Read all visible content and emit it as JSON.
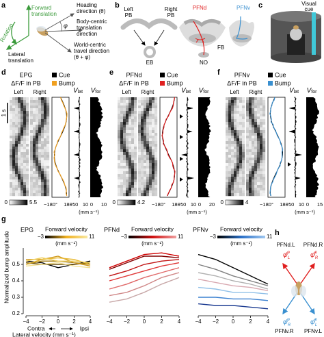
{
  "panel_a": {
    "label": "a",
    "heading": [
      "Heading",
      "direction (θ)"
    ],
    "forward": [
      "Forward",
      "translation"
    ],
    "rotation": "Rotation",
    "lateral": [
      "Lateral",
      "translation"
    ],
    "phi": "φ",
    "body_centric": [
      "Body-centric",
      "translation",
      "direction"
    ],
    "world_centric": [
      "World-centric",
      "travel direction",
      "(θ + φ)"
    ]
  },
  "panel_b": {
    "label": "b",
    "left_pb": [
      "Left",
      "PB"
    ],
    "right_pb": [
      "Right",
      "PB"
    ],
    "eb": "EB",
    "pfnd": "PFNd",
    "pfnv": "PFNv",
    "fb": "FB",
    "no": "NO"
  },
  "panel_c": {
    "label": "c",
    "visual_cue": [
      "Visual",
      "cue"
    ]
  },
  "imaging_panels": [
    {
      "label": "d",
      "cell_type": "EPG",
      "measure": "ΔF/F in PB",
      "left": "Left",
      "right": "Right",
      "cue": "Cue",
      "bump": "Bump",
      "bump_color": "#f0a020",
      "v_lat": {
        "symbol": "V",
        "subscript": "lat"
      },
      "v_for": {
        "symbol": "V",
        "subscript": "for"
      },
      "time_scale": "1 s",
      "colorbar": [
        "0",
        "5.5"
      ],
      "phase_axis": [
        "−180°",
        "180°"
      ],
      "v_lat_axis": [
        "−10",
        "10"
      ],
      "v_for_axis": [
        "0",
        "10"
      ],
      "unit": "(mm s⁻¹)"
    },
    {
      "label": "e",
      "cell_type": "PFNd",
      "measure": "ΔF/F in PB",
      "left": "Left",
      "right": "Right",
      "cue": "Cue",
      "bump": "Bump",
      "bump_color": "#e02020",
      "v_lat": {
        "symbol": "V",
        "subscript": "lat"
      },
      "v_for": {
        "symbol": "V",
        "subscript": "for"
      },
      "colorbar": [
        "0",
        "4.2"
      ],
      "phase_axis": [
        "−180°",
        "180°"
      ],
      "v_lat_axis": [
        "−10",
        "10"
      ],
      "v_for_axis": [
        "0",
        "20"
      ],
      "unit": "(mm s⁻¹)"
    },
    {
      "label": "f",
      "cell_type": "PFNv",
      "measure": "ΔF/F in PB",
      "left": "Left",
      "right": "Right",
      "cue": "Cue",
      "bump": "Bump",
      "bump_color": "#3a90d0",
      "v_lat": {
        "symbol": "V",
        "subscript": "lat"
      },
      "v_for": {
        "symbol": "V",
        "subscript": "for"
      },
      "colorbar": [
        "0",
        "4"
      ],
      "phase_axis": [
        "−180°",
        "180°"
      ],
      "v_lat_axis": [
        "−10",
        "10"
      ],
      "v_for_axis": [
        "0",
        "15"
      ],
      "unit": "(mm s⁻¹)"
    }
  ],
  "panel_g_label": "g",
  "chart_data": [
    {
      "type": "line",
      "title": "EPG",
      "ylabel": "Normalized bump amplitude",
      "xlabel": "Lateral velocity (mm s⁻¹)",
      "direction_labels": [
        "Contra",
        "Ipsi"
      ],
      "x": [
        -4,
        -2,
        0,
        2,
        4
      ],
      "xlim": [
        -4,
        4
      ],
      "xticks": [
        {
          "value": -4,
          "label": "−4"
        },
        {
          "value": -2,
          "label": "−2"
        },
        0,
        2,
        4
      ],
      "ylim": [
        0.2,
        0.6
      ],
      "yticks": [
        0.2,
        0.3,
        0.4,
        0.5
      ],
      "colorbar": {
        "label": "Forward velocity",
        "unit": "(mm s⁻¹)",
        "ticks": [
          {
            "value": -3,
            "label": "−3"
          },
          11
        ],
        "colors": [
          "#000000",
          "#f0b020",
          "#f8e8a0"
        ]
      },
      "series": [
        {
          "color": "#000000",
          "values": [
            0.52,
            0.51,
            0.48,
            0.5,
            0.52
          ]
        },
        {
          "color": "#6a5010",
          "values": [
            0.51,
            0.5,
            0.5,
            0.5,
            0.51
          ]
        },
        {
          "color": "#a07a10",
          "values": [
            0.5,
            0.52,
            0.52,
            0.51,
            0.5
          ]
        },
        {
          "color": "#d09a20",
          "values": [
            0.53,
            0.53,
            0.55,
            0.51,
            0.49
          ]
        },
        {
          "color": "#e8b830",
          "values": [
            0.5,
            0.53,
            0.54,
            0.53,
            0.5
          ]
        },
        {
          "color": "#f0d060",
          "values": [
            0.52,
            0.54,
            0.52,
            0.52,
            0.51
          ]
        },
        {
          "color": "#f4e090",
          "values": [
            0.49,
            0.5,
            0.51,
            0.49,
            0.48
          ]
        }
      ]
    },
    {
      "type": "line",
      "title": "PFNd",
      "x": [
        -4,
        -2,
        0,
        2,
        4
      ],
      "xlim": [
        -4,
        4
      ],
      "xticks": [
        {
          "value": -4,
          "label": "−4"
        },
        {
          "value": -2,
          "label": "−2"
        },
        0,
        2,
        4
      ],
      "ylim": [
        0.2,
        0.6
      ],
      "colorbar": {
        "label": "Forward velocity",
        "unit": "(mm s⁻¹)",
        "ticks": [
          {
            "value": -3,
            "label": "−3"
          },
          11
        ],
        "colors": [
          "#000000",
          "#d01010",
          "#f0a0a0"
        ]
      },
      "series": [
        {
          "color": "#c8a8a8",
          "values": [
            0.27,
            0.29,
            0.33,
            0.38,
            0.42
          ]
        },
        {
          "color": "#d08888",
          "values": [
            0.31,
            0.33,
            0.37,
            0.42,
            0.45
          ]
        },
        {
          "color": "#e06868",
          "values": [
            0.35,
            0.38,
            0.42,
            0.45,
            0.48
          ]
        },
        {
          "color": "#e03838",
          "values": [
            0.4,
            0.43,
            0.46,
            0.49,
            0.51
          ]
        },
        {
          "color": "#c01010",
          "values": [
            0.43,
            0.46,
            0.5,
            0.52,
            0.53
          ]
        },
        {
          "color": "#800000",
          "values": [
            0.47,
            0.51,
            0.55,
            0.55,
            0.54
          ]
        },
        {
          "color": "#d00000",
          "values": [
            0.48,
            0.52,
            0.56,
            0.57,
            0.55
          ]
        }
      ]
    },
    {
      "type": "line",
      "title": "PFNv",
      "x": [
        -4,
        -2,
        0,
        2,
        4
      ],
      "xlim": [
        -4,
        4
      ],
      "xticks": [
        {
          "value": -4,
          "label": "−4"
        },
        {
          "value": -2,
          "label": "−2"
        },
        0,
        2,
        4
      ],
      "ylim": [
        0.2,
        0.6
      ],
      "colorbar": {
        "label": "Forward velocity",
        "unit": "(mm s⁻¹)",
        "ticks": [
          {
            "value": -3,
            "label": "−3"
          },
          11
        ],
        "colors": [
          "#000000",
          "#2a70c8",
          "#a0c8f0"
        ]
      },
      "series": [
        {
          "color": "#000000",
          "values": [
            0.56,
            0.53,
            0.48,
            0.43,
            0.38
          ]
        },
        {
          "color": "#808080",
          "values": [
            0.5,
            0.47,
            0.43,
            0.4,
            0.37
          ]
        },
        {
          "color": "#b0b0b0",
          "values": [
            0.45,
            0.43,
            0.4,
            0.38,
            0.35
          ]
        },
        {
          "color": "#d8a8b0",
          "values": [
            0.41,
            0.39,
            0.37,
            0.36,
            0.34
          ]
        },
        {
          "color": "#90c0e8",
          "values": [
            0.36,
            0.35,
            0.33,
            0.33,
            0.32
          ]
        },
        {
          "color": "#3a80d0",
          "values": [
            0.3,
            0.3,
            0.29,
            0.29,
            0.28
          ]
        },
        {
          "color": "#1a3a90",
          "values": [
            0.26,
            0.25,
            0.25,
            0.24,
            0.23
          ]
        }
      ]
    }
  ],
  "panel_h": {
    "label": "h",
    "pfnd_l": "PFNd.L",
    "pfnd_r": "PFNd.R",
    "pfnv_r": "PFNv.R",
    "pfnv_l": "PFNv.L",
    "vectors": [
      {
        "symbol": "φ̂",
        "sup": "p",
        "sub": "L"
      },
      {
        "symbol": "φ̂",
        "sup": "p",
        "sub": "R"
      },
      {
        "symbol": "φ̂",
        "sup": "p",
        "sub": "R"
      },
      {
        "symbol": "φ̂",
        "sup": "p",
        "sub": "L"
      }
    ]
  }
}
